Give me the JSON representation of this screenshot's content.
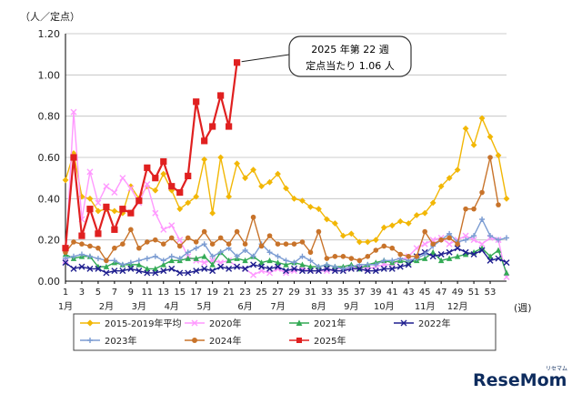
{
  "chart_data": {
    "type": "line",
    "y_unit": "（人／定点）",
    "x_unit": "(週)",
    "ylim": [
      0,
      1.2
    ],
    "yticks": [
      "0.00",
      "0.20",
      "0.40",
      "0.60",
      "0.80",
      "1.00",
      "1.20"
    ],
    "xticks": [
      1,
      3,
      5,
      7,
      9,
      11,
      13,
      15,
      17,
      19,
      21,
      23,
      25,
      27,
      29,
      31,
      33,
      35,
      37,
      39,
      41,
      43,
      45,
      47,
      49,
      51,
      53
    ],
    "month_labels": [
      {
        "week": 1,
        "label": "1月"
      },
      {
        "week": 6,
        "label": "2月"
      },
      {
        "week": 10,
        "label": "3月"
      },
      {
        "week": 14,
        "label": "4月"
      },
      {
        "week": 18,
        "label": "5月"
      },
      {
        "week": 23,
        "label": "6月"
      },
      {
        "week": 27,
        "label": "7月"
      },
      {
        "week": 32,
        "label": "8月"
      },
      {
        "week": 36,
        "label": "9月"
      },
      {
        "week": 40,
        "label": "10月"
      },
      {
        "week": 45,
        "label": "11月"
      },
      {
        "week": 49,
        "label": "12月"
      }
    ],
    "grid": true,
    "annotation": {
      "lines": [
        "2025 年第 22 週",
        "定点当たり 1.06 人"
      ],
      "week": 22,
      "value": 1.06
    },
    "series": [
      {
        "name": "2015-2019年平均",
        "color": "#F2B705",
        "marker": "diamond",
        "values": [
          0.49,
          0.62,
          0.41,
          0.4,
          0.34,
          0.35,
          0.34,
          0.33,
          0.46,
          0.4,
          0.46,
          0.44,
          0.52,
          0.44,
          0.35,
          0.38,
          0.41,
          0.59,
          0.33,
          0.6,
          0.41,
          0.57,
          0.5,
          0.54,
          0.46,
          0.48,
          0.52,
          0.45,
          0.4,
          0.39,
          0.36,
          0.35,
          0.3,
          0.28,
          0.22,
          0.23,
          0.19,
          0.19,
          0.2,
          0.26,
          0.27,
          0.29,
          0.28,
          0.32,
          0.33,
          0.38,
          0.46,
          0.5,
          0.54,
          0.74,
          0.66,
          0.79,
          0.7,
          0.61,
          0.4
        ]
      },
      {
        "name": "2020年",
        "color": "#FF99FF",
        "marker": "x",
        "values": [
          0.1,
          0.82,
          0.3,
          0.53,
          0.38,
          0.46,
          0.43,
          0.5,
          0.45,
          0.38,
          0.47,
          0.33,
          0.25,
          0.27,
          0.2,
          0.12,
          0.1,
          0.09,
          0.1,
          0.09,
          0.1,
          0.07,
          0.06,
          0.03,
          0.05,
          0.04,
          0.06,
          0.04,
          0.05,
          0.06,
          0.05,
          0.05,
          0.05,
          0.06,
          0.06,
          0.06,
          0.07,
          0.06,
          0.07,
          0.08,
          0.08,
          0.1,
          0.12,
          0.16,
          0.18,
          0.2,
          0.21,
          0.18,
          0.2,
          0.22,
          0.2,
          0.18,
          0.21,
          0.2,
          0.02
        ]
      },
      {
        "name": "2021年",
        "color": "#33AA55",
        "marker": "triangle",
        "values": [
          0.13,
          0.11,
          0.12,
          0.12,
          0.07,
          0.07,
          0.09,
          0.08,
          0.08,
          0.08,
          0.06,
          0.06,
          0.08,
          0.1,
          0.1,
          0.11,
          0.11,
          0.12,
          0.08,
          0.14,
          0.1,
          0.11,
          0.1,
          0.12,
          0.09,
          0.1,
          0.09,
          0.08,
          0.09,
          0.08,
          0.07,
          0.07,
          0.08,
          0.07,
          0.07,
          0.08,
          0.06,
          0.08,
          0.09,
          0.1,
          0.09,
          0.1,
          0.09,
          0.1,
          0.11,
          0.14,
          0.1,
          0.11,
          0.12,
          0.13,
          0.14,
          0.16,
          0.12,
          0.15,
          0.04
        ]
      },
      {
        "name": "2022年",
        "color": "#1F1F8F",
        "marker": "x",
        "values": [
          0.09,
          0.06,
          0.07,
          0.06,
          0.06,
          0.04,
          0.05,
          0.05,
          0.06,
          0.05,
          0.04,
          0.04,
          0.05,
          0.06,
          0.04,
          0.04,
          0.05,
          0.06,
          0.05,
          0.07,
          0.06,
          0.07,
          0.06,
          0.08,
          0.07,
          0.06,
          0.07,
          0.05,
          0.06,
          0.05,
          0.05,
          0.05,
          0.06,
          0.05,
          0.05,
          0.06,
          0.06,
          0.05,
          0.05,
          0.06,
          0.06,
          0.07,
          0.08,
          0.12,
          0.14,
          0.12,
          0.13,
          0.14,
          0.16,
          0.14,
          0.13,
          0.15,
          0.1,
          0.11,
          0.09
        ]
      },
      {
        "name": "2023年",
        "color": "#7B9CD2",
        "marker": "plus",
        "values": [
          0.11,
          0.12,
          0.13,
          0.12,
          0.11,
          0.1,
          0.1,
          0.08,
          0.09,
          0.1,
          0.11,
          0.12,
          0.1,
          0.12,
          0.11,
          0.14,
          0.16,
          0.18,
          0.12,
          0.14,
          0.16,
          0.12,
          0.15,
          0.12,
          0.18,
          0.14,
          0.12,
          0.1,
          0.09,
          0.12,
          0.1,
          0.07,
          0.08,
          0.07,
          0.06,
          0.07,
          0.08,
          0.08,
          0.08,
          0.1,
          0.1,
          0.11,
          0.1,
          0.11,
          0.13,
          0.17,
          0.2,
          0.23,
          0.19,
          0.2,
          0.22,
          0.3,
          0.22,
          0.2,
          0.21
        ]
      },
      {
        "name": "2024年",
        "color": "#C8732A",
        "marker": "circle",
        "values": [
          0.14,
          0.19,
          0.18,
          0.17,
          0.16,
          0.1,
          0.16,
          0.18,
          0.25,
          0.16,
          0.19,
          0.2,
          0.18,
          0.21,
          0.17,
          0.21,
          0.19,
          0.24,
          0.18,
          0.21,
          0.18,
          0.24,
          0.18,
          0.31,
          0.17,
          0.22,
          0.18,
          0.18,
          0.18,
          0.19,
          0.14,
          0.24,
          0.11,
          0.12,
          0.12,
          0.11,
          0.1,
          0.12,
          0.15,
          0.17,
          0.16,
          0.13,
          0.12,
          0.12,
          0.24,
          0.18,
          0.2,
          0.21,
          0.18,
          0.35,
          0.35,
          0.43,
          0.6,
          0.37
        ]
      },
      {
        "name": "2025年",
        "color": "#E02020",
        "marker": "square",
        "values": [
          0.16,
          0.6,
          0.22,
          0.35,
          0.23,
          0.36,
          0.25,
          0.35,
          0.33,
          0.39,
          0.55,
          0.5,
          0.58,
          0.46,
          0.43,
          0.51,
          0.87,
          0.68,
          0.75,
          0.9,
          0.75,
          1.06
        ]
      }
    ]
  },
  "watermark": {
    "brand": "ReseMom",
    "kana": "リセマム"
  }
}
